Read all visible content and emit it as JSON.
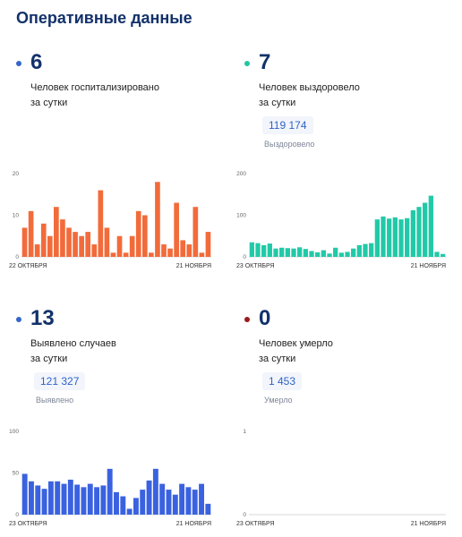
{
  "page": {
    "title": "Оперативные данные"
  },
  "cards": [
    {
      "value": "6",
      "desc1": "Человек госпитализировано",
      "desc2": "за сутки",
      "dot_color": "#3566c9"
    },
    {
      "value": "7",
      "desc1": "Человек выздоровело",
      "desc2": "за сутки",
      "total": "119 174",
      "total_label": "Выздоровело",
      "dot_color": "#22c4a2"
    },
    {
      "value": "13",
      "desc1": "Выявлено случаев",
      "desc2": "за сутки",
      "total": "121 327",
      "total_label": "Выявлено",
      "dot_color": "#3566c9"
    },
    {
      "value": "0",
      "desc1": "Человек умерло",
      "desc2": "за сутки",
      "total": "1 453",
      "total_label": "Умерло",
      "dot_color": "#9a1b1b"
    }
  ],
  "chart_data": [
    {
      "type": "bar",
      "color": "#f26b3a",
      "yticks": [
        0,
        10,
        20
      ],
      "ylim": [
        0,
        20
      ],
      "x_start_label": "22 ОКТЯБРЯ",
      "x_end_label": "21 НОЯБРЯ",
      "values": [
        7,
        11,
        3,
        8,
        5,
        12,
        9,
        7,
        6,
        5,
        6,
        3,
        16,
        7,
        1,
        5,
        1,
        5,
        11,
        10,
        1,
        18,
        3,
        2,
        13,
        4,
        3,
        12,
        1,
        6
      ]
    },
    {
      "type": "bar",
      "color": "#22c9a8",
      "yticks": [
        0,
        100,
        200
      ],
      "ylim": [
        0,
        200
      ],
      "x_start_label": "23 ОКТЯБРЯ",
      "x_end_label": "21 НОЯБРЯ",
      "values": [
        35,
        33,
        28,
        32,
        20,
        22,
        21,
        20,
        23,
        19,
        14,
        11,
        16,
        8,
        22,
        10,
        12,
        20,
        28,
        31,
        33,
        90,
        97,
        92,
        95,
        90,
        93,
        112,
        120,
        130,
        147,
        12,
        7
      ]
    },
    {
      "type": "bar",
      "color": "#3a62e0",
      "yticks": [
        0,
        50,
        100
      ],
      "ylim": [
        0,
        100
      ],
      "x_start_label": "23 ОКТЯБРЯ",
      "x_end_label": "21 НОЯБРЯ",
      "values": [
        49,
        40,
        35,
        31,
        40,
        40,
        37,
        42,
        36,
        33,
        37,
        33,
        35,
        55,
        27,
        22,
        7,
        20,
        30,
        41,
        55,
        37,
        30,
        24,
        37,
        33,
        30,
        37,
        13
      ]
    },
    {
      "type": "bar",
      "color": "#9a1b1b",
      "yticks": [
        0,
        1
      ],
      "ylim": [
        0,
        1
      ],
      "x_start_label": "23 ОКТЯБРЯ",
      "x_end_label": "21 НОЯБРЯ",
      "values": [
        0,
        0,
        0,
        0,
        0,
        0,
        0,
        0,
        0,
        0,
        0,
        0,
        0,
        0,
        0,
        0,
        0,
        0,
        0,
        0,
        0,
        0,
        0,
        0,
        0,
        0,
        0,
        0,
        0,
        0
      ]
    }
  ]
}
